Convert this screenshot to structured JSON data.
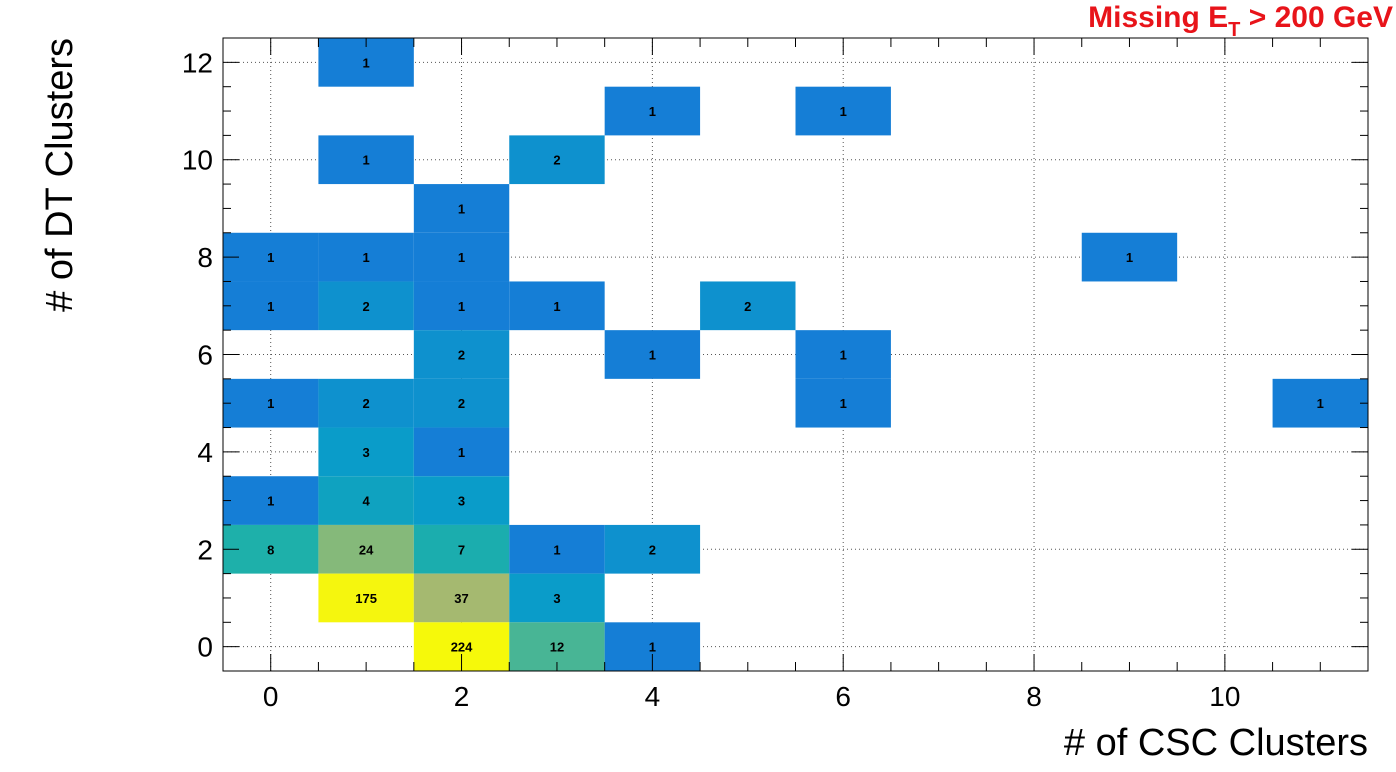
{
  "header": {
    "title_prefix": "Missing E",
    "title_subscript": "T",
    "title_suffix": " > 200 GeV"
  },
  "chart_data": {
    "type": "heatmap",
    "title": "Missing ET > 200 GeV",
    "xlabel": "# of CSC Clusters",
    "ylabel": "# of DT Clusters",
    "xlim": [
      -0.5,
      11.5
    ],
    "ylim": [
      -0.5,
      12.5
    ],
    "x_ticks": [
      0,
      2,
      4,
      6,
      8,
      10
    ],
    "y_ticks": [
      0,
      2,
      4,
      6,
      8,
      10,
      12
    ],
    "grid": true,
    "colors": {
      "title": "#e8141a",
      "low": "#157ed6",
      "mid_low": "#0a9dc8",
      "mid": "#34b39a",
      "mid_high": "#b4b86a",
      "high": "#f6f90a"
    },
    "cells": [
      {
        "x": 1,
        "y": 12,
        "v": 1
      },
      {
        "x": 4,
        "y": 11,
        "v": 1
      },
      {
        "x": 6,
        "y": 11,
        "v": 1
      },
      {
        "x": 1,
        "y": 10,
        "v": 1
      },
      {
        "x": 3,
        "y": 10,
        "v": 2
      },
      {
        "x": 2,
        "y": 9,
        "v": 1
      },
      {
        "x": 0,
        "y": 8,
        "v": 1
      },
      {
        "x": 1,
        "y": 8,
        "v": 1
      },
      {
        "x": 2,
        "y": 8,
        "v": 1
      },
      {
        "x": 9,
        "y": 8,
        "v": 1
      },
      {
        "x": 0,
        "y": 7,
        "v": 1
      },
      {
        "x": 1,
        "y": 7,
        "v": 2
      },
      {
        "x": 2,
        "y": 7,
        "v": 1
      },
      {
        "x": 3,
        "y": 7,
        "v": 1
      },
      {
        "x": 5,
        "y": 7,
        "v": 2
      },
      {
        "x": 2,
        "y": 6,
        "v": 2
      },
      {
        "x": 4,
        "y": 6,
        "v": 1
      },
      {
        "x": 6,
        "y": 6,
        "v": 1
      },
      {
        "x": 0,
        "y": 5,
        "v": 1
      },
      {
        "x": 1,
        "y": 5,
        "v": 2
      },
      {
        "x": 2,
        "y": 5,
        "v": 2
      },
      {
        "x": 6,
        "y": 5,
        "v": 1
      },
      {
        "x": 11,
        "y": 5,
        "v": 1
      },
      {
        "x": 1,
        "y": 4,
        "v": 3
      },
      {
        "x": 2,
        "y": 4,
        "v": 1
      },
      {
        "x": 0,
        "y": 3,
        "v": 1
      },
      {
        "x": 1,
        "y": 3,
        "v": 4
      },
      {
        "x": 2,
        "y": 3,
        "v": 3
      },
      {
        "x": 0,
        "y": 2,
        "v": 8
      },
      {
        "x": 1,
        "y": 2,
        "v": 24
      },
      {
        "x": 2,
        "y": 2,
        "v": 7
      },
      {
        "x": 3,
        "y": 2,
        "v": 1
      },
      {
        "x": 4,
        "y": 2,
        "v": 2
      },
      {
        "x": 1,
        "y": 1,
        "v": 175
      },
      {
        "x": 2,
        "y": 1,
        "v": 37
      },
      {
        "x": 3,
        "y": 1,
        "v": 3
      },
      {
        "x": 2,
        "y": 0,
        "v": 224
      },
      {
        "x": 3,
        "y": 0,
        "v": 12
      },
      {
        "x": 4,
        "y": 0,
        "v": 1
      }
    ]
  }
}
